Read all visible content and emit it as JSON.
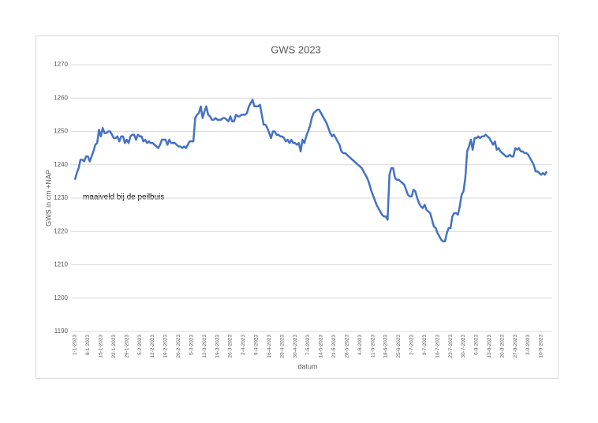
{
  "chart_data": {
    "type": "line",
    "title": "GWS 2023",
    "x_label": "datum",
    "y_label": "GWS in cm +NAP",
    "annotations": [
      "maaiveld bij de peilbuis"
    ],
    "categories": [
      "1-1-2023",
      null,
      null,
      null,
      null,
      null,
      null,
      "8-1-2023",
      null,
      null,
      null,
      null,
      null,
      null,
      "15-1-2023",
      null,
      null,
      null,
      null,
      null,
      null,
      "22-1-2023",
      null,
      null,
      null,
      null,
      null,
      null,
      "29-1-2023",
      null,
      null,
      null,
      null,
      null,
      null,
      "5-2-2023",
      null,
      null,
      null,
      null,
      null,
      null,
      "12-2-2023",
      null,
      null,
      null,
      null,
      null,
      null,
      "19-2-2023",
      null,
      null,
      null,
      null,
      null,
      null,
      "26-2-2023",
      null,
      null,
      null,
      null,
      null,
      null,
      "5-3-2023",
      null,
      null,
      null,
      null,
      null,
      null,
      "12-3-2023",
      null,
      null,
      null,
      null,
      null,
      null,
      "19-3-2023",
      null,
      null,
      null,
      null,
      null,
      null,
      "26-3-2023",
      null,
      null,
      null,
      null,
      null,
      null,
      "2-4-2023",
      null,
      null,
      null,
      null,
      null,
      null,
      "9-4-2023",
      null,
      null,
      null,
      null,
      null,
      null,
      "16-4-2023",
      null,
      null,
      null,
      null,
      null,
      null,
      "23-4-2023",
      null,
      null,
      null,
      null,
      null,
      null,
      "30-4-2023",
      null,
      null,
      null,
      null,
      null,
      null,
      "7-5-2023",
      null,
      null,
      null,
      null,
      null,
      null,
      "14-5-2023",
      null,
      null,
      null,
      null,
      null,
      null,
      "21-5-2023",
      null,
      null,
      null,
      null,
      null,
      null,
      "28-5-2023",
      null,
      null,
      null,
      null,
      null,
      null,
      "4-6-2023",
      null,
      null,
      null,
      null,
      null,
      null,
      "11-6-2023",
      null,
      null,
      null,
      null,
      null,
      null,
      "18-6-2023",
      null,
      null,
      null,
      null,
      null,
      null,
      "25-6-2023",
      null,
      null,
      null,
      null,
      null,
      null,
      "2-7-2023",
      null,
      null,
      null,
      null,
      null,
      null,
      "9-7-2023",
      null,
      null,
      null,
      null,
      null,
      null,
      "16-7-2023",
      null,
      null,
      null,
      null,
      null,
      null,
      "23-7-2023",
      null,
      null,
      null,
      null,
      null,
      null,
      "30-7-2023",
      null,
      null,
      null,
      null,
      null,
      null,
      "6-8-2023",
      null,
      null,
      null,
      null,
      null,
      null,
      "13-8-2023",
      null,
      null,
      null,
      null,
      null,
      null,
      "20-8-2023",
      null,
      null,
      null,
      null,
      null,
      null,
      "27-8-2023",
      null,
      null,
      null,
      null,
      null,
      null,
      "3-9-2023",
      null,
      null,
      null,
      null,
      null,
      null,
      "10-9-2023",
      null,
      null,
      null
    ],
    "series": [
      {
        "name": "GWS",
        "color": "#4472c4",
        "values": [
          1235.5,
          1237.5,
          1239,
          1241.5,
          1241.5,
          1241,
          1242.5,
          1242.5,
          1241,
          1242.5,
          1244,
          1246,
          1246.5,
          1250.5,
          1248.5,
          1251,
          1249.5,
          1249.5,
          1250,
          1250,
          1249,
          1248,
          1248,
          1248.5,
          1247,
          1248.5,
          1248.5,
          1246.5,
          1247.5,
          1246.5,
          1248.5,
          1249,
          1249,
          1247.5,
          1249,
          1248.5,
          1248.5,
          1247,
          1247.5,
          1246.5,
          1247,
          1246.5,
          1246.5,
          1246,
          1245.5,
          1245,
          1246,
          1247.5,
          1247.5,
          1247.5,
          1246,
          1247.5,
          1246.5,
          1246.5,
          1246.5,
          1246,
          1245.5,
          1245.5,
          1245,
          1245.5,
          1245,
          1246,
          1247,
          1247,
          1247,
          1254,
          1255,
          1255.5,
          1257.5,
          1254,
          1256,
          1257.5,
          1255,
          1254.5,
          1253.5,
          1253.5,
          1254,
          1253.5,
          1253.5,
          1253.5,
          1254,
          1254,
          1253.5,
          1253,
          1254.5,
          1253,
          1253,
          1255,
          1254.5,
          1254.5,
          1255,
          1255,
          1255,
          1255.5,
          1257.5,
          1258.5,
          1259.5,
          1257.5,
          1257.5,
          1257.5,
          1258,
          1255,
          1252,
          1252,
          1251,
          1249.5,
          1248,
          1250,
          1250,
          1249,
          1249,
          1248.5,
          1248.5,
          1248,
          1247,
          1247.5,
          1246.5,
          1247.5,
          1246.5,
          1246.5,
          1246,
          1246.5,
          1244,
          1247.5,
          1246.5,
          1248.5,
          1250,
          1251.5,
          1254,
          1255.5,
          1256,
          1256.5,
          1256.5,
          1255.5,
          1254.5,
          1253.5,
          1252.5,
          1251,
          1249.5,
          1248.5,
          1249,
          1248,
          1247,
          1246,
          1244,
          1243.5,
          1243.5,
          1243,
          1242.5,
          1242,
          1241.5,
          1241,
          1240.5,
          1240,
          1239.5,
          1239,
          1238,
          1237,
          1236,
          1234.5,
          1232.5,
          1231,
          1229.5,
          1228,
          1227,
          1226,
          1225,
          1224.5,
          1224.5,
          1223.5,
          1237,
          1239,
          1239,
          1236,
          1235.5,
          1235.5,
          1235,
          1234.5,
          1234,
          1232.5,
          1231,
          1230.5,
          1230.5,
          1232.5,
          1232,
          1230,
          1228.5,
          1227.5,
          1227,
          1228,
          1226.5,
          1226,
          1225.5,
          1223.5,
          1221.5,
          1221,
          1219.5,
          1218.5,
          1217.5,
          1217,
          1217,
          1219.5,
          1221,
          1221,
          1224.5,
          1225.5,
          1225.5,
          1225,
          1227.5,
          1231,
          1232,
          1236,
          1244,
          1245.5,
          1247.5,
          1244.5,
          1248,
          1248,
          1248.5,
          1248,
          1248.5,
          1248.5,
          1249,
          1248.5,
          1248,
          1247,
          1246,
          1247,
          1244.5,
          1245,
          1244,
          1243.5,
          1243,
          1242.5,
          1242.5,
          1243,
          1242.5,
          1242.5,
          1245,
          1244.5,
          1245,
          1244,
          1244,
          1243.5,
          1243.5,
          1243,
          1242,
          1241,
          1240,
          1238,
          1238,
          1237.5,
          1237,
          1237.5,
          1237,
          1238
        ]
      }
    ],
    "ylim": [
      1190,
      1270
    ],
    "yticks": [
      1190,
      1200,
      1210,
      1220,
      1230,
      1240,
      1250,
      1260,
      1270
    ],
    "grid": true
  }
}
